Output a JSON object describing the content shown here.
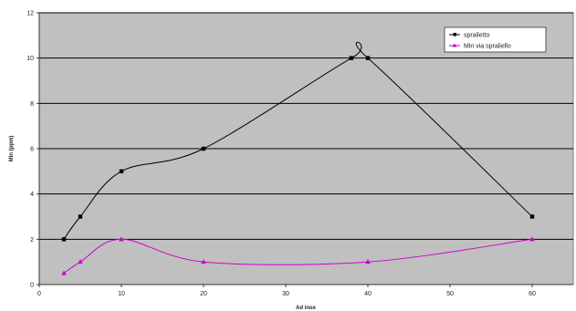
{
  "chart_data": {
    "type": "line",
    "smooth": true,
    "xlim": [
      0,
      65
    ],
    "ylim": [
      0,
      12
    ],
    "x_ticks": [
      0,
      10,
      20,
      30,
      40,
      50,
      60
    ],
    "y_ticks": [
      0,
      2,
      4,
      6,
      8,
      10,
      12
    ],
    "xlabel": "Ad inox",
    "ylabel": "Min (ppm)",
    "grid": "horizontal",
    "legend_position": "top-right",
    "plot_background": "#c0c0c0",
    "series": [
      {
        "name": "sprailetto",
        "color": "#000000",
        "marker": "square",
        "points": [
          [
            3,
            2
          ],
          [
            5,
            3
          ],
          [
            10,
            5
          ],
          [
            20,
            6
          ],
          [
            38,
            10
          ],
          [
            40,
            10
          ],
          [
            60,
            3
          ]
        ]
      },
      {
        "name": "Min via spraliello",
        "color": "#cc00cc",
        "marker": "triangle",
        "points": [
          [
            3,
            0.5
          ],
          [
            5,
            1
          ],
          [
            10,
            2
          ],
          [
            20,
            1
          ],
          [
            40,
            1
          ],
          [
            60,
            2
          ]
        ]
      }
    ]
  }
}
